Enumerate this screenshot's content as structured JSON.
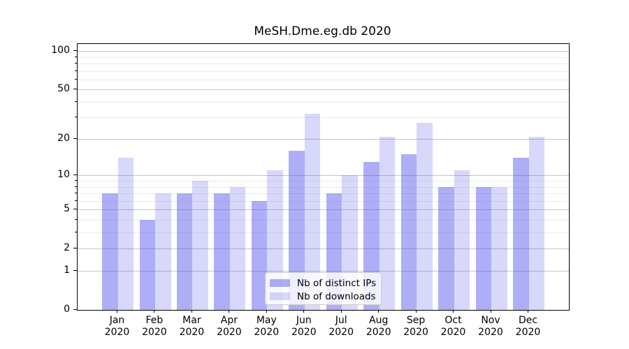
{
  "chart_data": {
    "type": "bar",
    "title": "MeSH.Dme.eg.db 2020",
    "year": "2020",
    "categories": [
      "Jan",
      "Feb",
      "Mar",
      "Apr",
      "May",
      "Jun",
      "Jul",
      "Aug",
      "Sep",
      "Oct",
      "Nov",
      "Dec"
    ],
    "series": [
      {
        "name": "Nb of distinct IPs",
        "values": [
          7,
          4,
          7,
          7,
          6,
          16,
          7,
          13,
          15,
          8,
          8,
          14
        ],
        "fill": "rgba(62,62,235,0.42)"
      },
      {
        "name": "Nb of downloads",
        "values": [
          14,
          7,
          9,
          8,
          11,
          32,
          10,
          21,
          27,
          11,
          8,
          21
        ],
        "fill": "rgba(62,62,235,0.2)"
      }
    ],
    "xlabel": "",
    "ylabel": "",
    "yscale": "log10(1+x)",
    "ylim": [
      0,
      115
    ],
    "yticks": [
      0,
      1,
      2,
      5,
      10,
      20,
      50,
      100
    ],
    "minor_gridlines": [
      3,
      4,
      6,
      7,
      8,
      9,
      30,
      40,
      60,
      70,
      80,
      90
    ],
    "grid": "on",
    "legend_position": "lower-center",
    "colors": {
      "major_grid": "#c6c6c6",
      "minor_grid": "#ebebeb",
      "axis": "#000000",
      "background": "#ffffff"
    }
  }
}
